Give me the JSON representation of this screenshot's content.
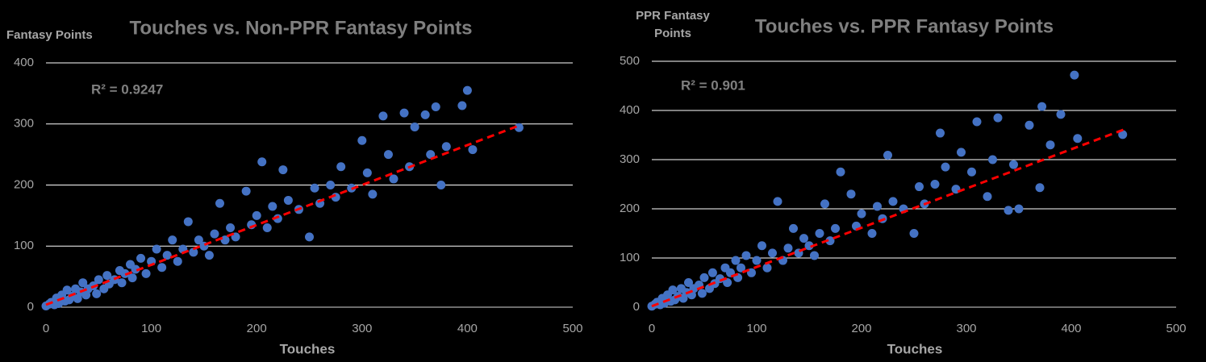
{
  "chart_data": [
    {
      "type": "scatter",
      "title": "Touches vs. Non-PPR Fantasy Points",
      "x_label": "Touches",
      "y_label": "Fantasy Points",
      "annotation": "R² = 0.9247",
      "xlim": [
        0,
        500
      ],
      "xticks": [
        0,
        100,
        200,
        300,
        400,
        500
      ],
      "ylim": [
        0,
        400
      ],
      "yticks": [
        0,
        100,
        200,
        300,
        400
      ],
      "grid": true,
      "series": [
        {
          "color": "#4472c4",
          "x": [
            0,
            3,
            5,
            8,
            10,
            12,
            15,
            18,
            20,
            22,
            25,
            28,
            30,
            33,
            35,
            38,
            40,
            45,
            48,
            50,
            55,
            58,
            60,
            65,
            70,
            72,
            75,
            80,
            82,
            85,
            90,
            95,
            100,
            105,
            110,
            115,
            120,
            125,
            130,
            135,
            140,
            145,
            150,
            155,
            160,
            165,
            170,
            175,
            180,
            190,
            195,
            200,
            205,
            210,
            215,
            220,
            225,
            230,
            240,
            250,
            255,
            260,
            270,
            275,
            280,
            290,
            300,
            305,
            310,
            320,
            325,
            330,
            340,
            345,
            350,
            360,
            365,
            370,
            375,
            380,
            395,
            400,
            405,
            449
          ],
          "values": [
            2,
            5,
            8,
            4,
            15,
            6,
            20,
            10,
            28,
            12,
            18,
            30,
            14,
            25,
            40,
            20,
            30,
            35,
            22,
            45,
            30,
            52,
            38,
            45,
            60,
            40,
            55,
            70,
            48,
            62,
            80,
            55,
            75,
            95,
            65,
            85,
            110,
            75,
            95,
            140,
            90,
            110,
            100,
            85,
            120,
            170,
            110,
            130,
            115,
            190,
            135,
            150,
            238,
            130,
            165,
            145,
            225,
            175,
            160,
            115,
            195,
            170,
            200,
            180,
            230,
            195,
            273,
            220,
            185,
            313,
            250,
            210,
            318,
            230,
            295,
            315,
            250,
            328,
            200,
            263,
            330,
            355,
            258,
            294
          ]
        }
      ],
      "trendline": {
        "color": "#ff0000",
        "x": [
          0,
          450
        ],
        "y": [
          4,
          298
        ]
      }
    },
    {
      "type": "scatter",
      "title": "Touches vs. PPR Fantasy Points",
      "x_label": "Touches",
      "y_label": "PPR Fantasy Points",
      "annotation": "R² = 0.901",
      "xlim": [
        0,
        500
      ],
      "xticks": [
        0,
        100,
        200,
        300,
        400,
        500
      ],
      "ylim": [
        0,
        500
      ],
      "yticks": [
        0,
        100,
        200,
        300,
        400,
        500
      ],
      "grid": true,
      "series": [
        {
          "color": "#4472c4",
          "x": [
            0,
            3,
            5,
            8,
            10,
            12,
            15,
            18,
            20,
            22,
            25,
            28,
            30,
            33,
            35,
            38,
            40,
            45,
            48,
            50,
            55,
            58,
            60,
            65,
            70,
            72,
            75,
            80,
            82,
            85,
            90,
            95,
            100,
            105,
            110,
            115,
            120,
            125,
            130,
            135,
            140,
            145,
            150,
            155,
            160,
            165,
            170,
            175,
            180,
            190,
            195,
            200,
            210,
            215,
            220,
            225,
            230,
            240,
            250,
            255,
            260,
            270,
            275,
            280,
            290,
            295,
            305,
            310,
            320,
            325,
            330,
            340,
            345,
            350,
            360,
            370,
            372,
            380,
            390,
            403,
            406,
            449
          ],
          "values": [
            2,
            6,
            10,
            5,
            18,
            8,
            25,
            12,
            35,
            15,
            22,
            38,
            18,
            30,
            50,
            25,
            38,
            45,
            28,
            60,
            38,
            70,
            48,
            58,
            80,
            50,
            70,
            95,
            60,
            80,
            105,
            70,
            95,
            125,
            80,
            110,
            215,
            95,
            120,
            160,
            110,
            140,
            125,
            105,
            150,
            210,
            135,
            160,
            275,
            230,
            165,
            190,
            150,
            205,
            180,
            309,
            215,
            200,
            150,
            245,
            210,
            250,
            354,
            285,
            240,
            315,
            275,
            377,
            225,
            300,
            385,
            197,
            290,
            200,
            370,
            243,
            408,
            330,
            392,
            472,
            343,
            351
          ]
        }
      ],
      "trendline": {
        "color": "#ff0000",
        "x": [
          0,
          450
        ],
        "y": [
          2,
          361
        ]
      }
    }
  ]
}
